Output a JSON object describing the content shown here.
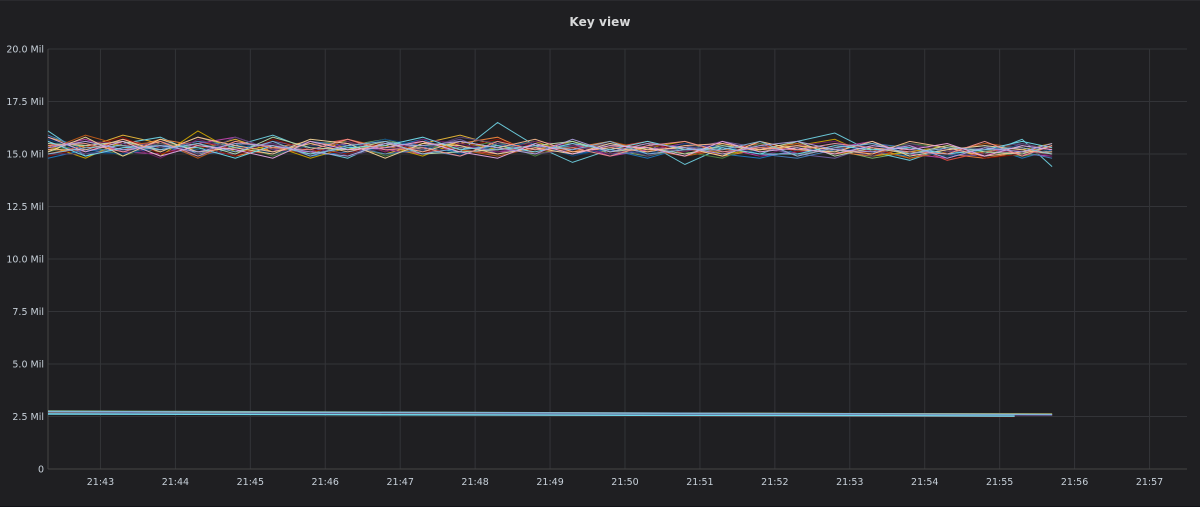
{
  "panel": {
    "title": "Key view"
  },
  "chart_data": {
    "type": "line",
    "title": "Key view",
    "xlabel": "",
    "ylabel": "",
    "x_ticks": [
      "21:43",
      "21:44",
      "21:45",
      "21:46",
      "21:47",
      "21:48",
      "21:49",
      "21:50",
      "21:51",
      "21:52",
      "21:53",
      "21:54",
      "21:55",
      "21:56",
      "21:57"
    ],
    "y_ticks": [
      "0",
      "2.5 Mil",
      "5.0 Mil",
      "7.5 Mil",
      "10.0 Mil",
      "12.5 Mil",
      "15.0 Mil",
      "17.5 Mil",
      "20.0 Mil"
    ],
    "y_tick_values": [
      0,
      2500000,
      5000000,
      7500000,
      10000000,
      12500000,
      15000000,
      17500000,
      20000000
    ],
    "xlim_minutes_after_21_42": [
      0.3,
      15.5
    ],
    "ylim": [
      0,
      20000000
    ],
    "grid": true,
    "legend": "none",
    "colors": [
      "#7eb26d",
      "#eab839",
      "#6ed0e0",
      "#ef843c",
      "#e24d42",
      "#1f78c1",
      "#ba43a9",
      "#705da0",
      "#508642",
      "#cca300",
      "#447ebc",
      "#c15c17",
      "#890f02",
      "#0a437c",
      "#6d1f62",
      "#584477",
      "#b7dbab",
      "#f4d598",
      "#70dbed",
      "#f9ba8f",
      "#f29191",
      "#82b5d8",
      "#e5a8e2",
      "#aea2e0"
    ],
    "high_band": {
      "series_count": 24,
      "times": [
        "21:42:18",
        "21:42:48",
        "21:43:18",
        "21:43:48",
        "21:44:18",
        "21:44:48",
        "21:45:18",
        "21:45:48",
        "21:46:18",
        "21:46:48",
        "21:47:18",
        "21:47:48",
        "21:48:18",
        "21:48:48",
        "21:49:18",
        "21:49:48",
        "21:50:18",
        "21:50:48",
        "21:51:18",
        "21:51:48",
        "21:52:18",
        "21:52:48",
        "21:53:18",
        "21:53:48",
        "21:54:18",
        "21:54:48",
        "21:55:18",
        "21:55:42"
      ],
      "series": [
        {
          "values": [
            15.2,
            15.6,
            15.4,
            15.1,
            15.8,
            15.3,
            15.5,
            15.0,
            15.4,
            15.7,
            15.2,
            15.6,
            15.3,
            15.1,
            15.4,
            15.2,
            14.9,
            15.3,
            15.1,
            15.4,
            15.0,
            15.2,
            14.8,
            15.1,
            14.9,
            15.2,
            15.0,
            15.3
          ]
        },
        {
          "values": [
            15.8,
            15.3,
            15.9,
            15.5,
            15.2,
            15.7,
            15.1,
            15.6,
            15.3,
            15.0,
            15.5,
            15.9,
            15.4,
            15.2,
            15.6,
            15.0,
            15.3,
            14.9,
            15.5,
            15.1,
            15.4,
            15.0,
            15.3,
            14.8,
            15.2,
            14.9,
            15.4,
            15.1
          ]
        },
        {
          "values": [
            16.1,
            14.9,
            15.5,
            15.8,
            15.0,
            15.4,
            15.9,
            15.2,
            14.8,
            15.6,
            15.3,
            15.1,
            16.5,
            15.4,
            14.6,
            15.2,
            15.5,
            14.5,
            15.3,
            15.0,
            15.6,
            16.0,
            15.1,
            14.7,
            15.3,
            15.0,
            15.7,
            14.4
          ]
        },
        {
          "values": [
            15.0,
            15.4,
            15.2,
            15.7,
            15.4,
            14.9,
            15.3,
            15.6,
            15.2,
            15.4,
            15.0,
            15.5,
            15.8,
            15.0,
            15.3,
            15.6,
            15.1,
            15.4,
            14.9,
            15.2,
            15.5,
            15.1,
            14.9,
            15.3,
            15.0,
            14.8,
            15.1,
            15.4
          ]
        },
        {
          "values": [
            15.5,
            15.1,
            15.7,
            15.3,
            15.6,
            15.2,
            15.0,
            15.4,
            15.7,
            15.1,
            15.6,
            15.2,
            15.0,
            15.5,
            15.1,
            15.3,
            15.6,
            15.0,
            15.2,
            15.5,
            14.9,
            15.3,
            15.0,
            15.4,
            14.7,
            15.1,
            15.3,
            15.0
          ]
        },
        {
          "values": [
            14.8,
            15.2,
            15.0,
            15.4,
            14.9,
            15.3,
            15.5,
            14.9,
            15.1,
            15.3,
            15.7,
            15.0,
            15.3,
            15.6,
            15.0,
            15.2,
            14.8,
            15.3,
            15.0,
            14.8,
            15.2,
            15.5,
            15.1,
            14.9,
            15.2,
            15.4,
            14.8,
            15.2
          ]
        },
        {
          "values": [
            15.3,
            15.7,
            15.1,
            15.0,
            15.5,
            15.8,
            15.2,
            15.1,
            15.5,
            15.2,
            15.0,
            15.4,
            15.1,
            15.3,
            15.5,
            14.9,
            15.2,
            15.5,
            15.3,
            14.9,
            15.1,
            15.3,
            15.6,
            15.0,
            14.8,
            15.3,
            15.0,
            14.9
          ]
        },
        {
          "values": [
            15.6,
            15.0,
            15.3,
            15.6,
            15.1,
            15.0,
            15.6,
            15.3,
            15.0,
            15.5,
            15.3,
            15.7,
            15.0,
            15.4,
            15.2,
            15.5,
            15.0,
            15.2,
            15.6,
            15.3,
            15.0,
            14.8,
            15.4,
            15.2,
            15.0,
            14.9,
            15.5,
            15.2
          ]
        },
        {
          "values": [
            15.1,
            15.5,
            14.9,
            15.5,
            15.3,
            15.5,
            14.9,
            15.5,
            15.6,
            14.9,
            15.4,
            15.3,
            15.6,
            14.9,
            15.6,
            15.1,
            15.4,
            15.1,
            14.8,
            15.5,
            15.3,
            15.0,
            15.2,
            15.5,
            15.3,
            15.1,
            14.9,
            15.1
          ]
        },
        {
          "values": [
            15.4,
            14.8,
            15.6,
            14.9,
            16.1,
            15.1,
            15.4,
            14.8,
            15.3,
            15.4,
            14.9,
            15.6,
            15.2,
            15.6,
            15.0,
            15.4,
            15.3,
            15.6,
            15.0,
            15.2,
            15.4,
            15.7,
            14.9,
            15.1,
            15.4,
            15.0,
            15.2,
            15.5
          ]
        },
        {
          "values": [
            15.9,
            15.2,
            15.2,
            15.2,
            15.6,
            15.4,
            15.1,
            15.6,
            15.4,
            15.0,
            15.2,
            14.9,
            15.5,
            15.2,
            15.4,
            15.0,
            15.1,
            15.3,
            15.4,
            15.0,
            14.8,
            15.2,
            15.5,
            15.3,
            15.0,
            15.3,
            15.1,
            14.8
          ]
        },
        {
          "values": [
            15.2,
            15.9,
            15.4,
            15.6,
            14.8,
            15.6,
            15.3,
            15.0,
            15.7,
            15.3,
            15.6,
            15.2,
            14.9,
            15.3,
            15.1,
            15.6,
            15.2,
            14.9,
            15.2,
            15.3,
            15.5,
            15.0,
            15.2,
            14.8,
            15.1,
            15.5,
            15.3,
            15.0
          ]
        },
        {
          "values": [
            14.9,
            15.3,
            15.8,
            15.0,
            15.4,
            14.9,
            15.7,
            15.2,
            15.0,
            15.6,
            15.1,
            15.3,
            15.7,
            15.1,
            15.3,
            15.2,
            15.5,
            15.2,
            15.0,
            15.6,
            15.1,
            15.4,
            15.0,
            15.2,
            15.5,
            14.8,
            15.0,
            15.3
          ]
        },
        {
          "values": [
            15.7,
            15.1,
            15.0,
            15.3,
            15.2,
            15.5,
            15.0,
            15.4,
            15.3,
            15.7,
            15.4,
            15.0,
            15.4,
            15.5,
            14.9,
            15.3,
            15.0,
            15.5,
            15.3,
            15.1,
            15.3,
            15.1,
            15.4,
            15.1,
            14.9,
            15.2,
            15.4,
            15.1
          ]
        },
        {
          "values": [
            15.3,
            15.6,
            15.5,
            14.8,
            15.7,
            15.2,
            15.5,
            14.9,
            15.6,
            15.1,
            15.7,
            15.5,
            15.1,
            15.6,
            15.4,
            15.0,
            15.4,
            15.1,
            15.6,
            14.9,
            15.4,
            15.6,
            15.1,
            15.4,
            15.2,
            15.0,
            15.2,
            14.9
          ]
        },
        {
          "values": [
            15.0,
            15.0,
            15.2,
            15.5,
            15.0,
            15.8,
            15.2,
            15.6,
            14.9,
            15.3,
            15.2,
            15.8,
            15.5,
            15.0,
            15.2,
            15.4,
            14.9,
            15.4,
            15.1,
            15.4,
            15.0,
            15.3,
            14.9,
            15.5,
            15.1,
            15.3,
            15.5,
            15.2
          ]
        },
        {
          "values": [
            15.5,
            15.4,
            15.6,
            15.2,
            15.5,
            15.0,
            15.8,
            15.3,
            15.2,
            15.6,
            15.0,
            15.1,
            15.2,
            15.4,
            15.6,
            15.1,
            15.3,
            15.0,
            15.4,
            15.2,
            15.6,
            14.9,
            15.3,
            15.0,
            15.4,
            15.1,
            15.0,
            15.4
          ]
        },
        {
          "values": [
            15.1,
            15.8,
            14.9,
            15.7,
            15.1,
            15.3,
            15.0,
            15.7,
            15.5,
            14.8,
            15.5,
            15.4,
            15.0,
            15.3,
            15.0,
            15.5,
            15.2,
            15.3,
            14.9,
            15.6,
            15.2,
            15.1,
            15.6,
            14.9,
            15.2,
            15.4,
            15.2,
            15.0
          ]
        },
        {
          "values": [
            15.6,
            14.9,
            15.3,
            15.4,
            15.3,
            14.8,
            15.4,
            15.0,
            15.3,
            15.4,
            15.8,
            15.2,
            15.4,
            15.1,
            15.5,
            15.2,
            15.6,
            15.2,
            15.3,
            15.0,
            15.0,
            15.4,
            15.2,
            15.3,
            15.0,
            15.2,
            15.6,
            15.3
          ]
        },
        {
          "values": [
            15.2,
            15.2,
            15.7,
            15.1,
            15.8,
            15.4,
            15.1,
            15.5,
            15.1,
            15.5,
            15.1,
            15.6,
            15.3,
            15.7,
            15.1,
            15.3,
            15.1,
            15.4,
            15.5,
            15.2,
            15.4,
            15.2,
            15.0,
            15.6,
            15.3,
            14.9,
            15.1,
            15.1
          ]
        },
        {
          "values": [
            15.4,
            15.5,
            15.1,
            15.6,
            14.9,
            15.6,
            15.3,
            15.2,
            15.7,
            15.2,
            15.3,
            14.9,
            15.6,
            15.2,
            15.3,
            14.9,
            15.4,
            15.6,
            15.1,
            15.3,
            15.2,
            15.5,
            15.3,
            15.1,
            15.0,
            15.6,
            14.9,
            15.4
          ]
        },
        {
          "values": [
            15.0,
            15.3,
            15.4,
            15.2,
            15.5,
            15.1,
            15.6,
            14.9,
            15.4,
            15.6,
            15.0,
            15.3,
            15.2,
            15.4,
            15.2,
            15.6,
            15.0,
            15.2,
            15.2,
            15.6,
            14.9,
            15.3,
            15.5,
            15.0,
            15.3,
            15.2,
            15.3,
            15.0
          ]
        },
        {
          "values": [
            15.8,
            15.1,
            15.6,
            14.9,
            15.4,
            15.2,
            14.8,
            15.6,
            15.2,
            15.3,
            15.6,
            15.1,
            14.8,
            15.5,
            15.0,
            15.4,
            15.3,
            14.9,
            15.6,
            15.1,
            15.3,
            15.0,
            15.4,
            15.2,
            15.5,
            14.9,
            15.4,
            15.2
          ]
        },
        {
          "values": [
            15.3,
            15.6,
            15.2,
            15.4,
            15.1,
            15.5,
            15.4,
            15.1,
            14.9,
            15.5,
            15.4,
            15.6,
            15.3,
            15.0,
            15.7,
            15.1,
            15.5,
            15.3,
            15.0,
            15.4,
            15.6,
            15.2,
            15.1,
            15.4,
            14.8,
            15.3,
            15.1,
            15.5
          ]
        }
      ]
    },
    "low_band": {
      "series_count": 8,
      "series": [
        {
          "start": 2.76,
          "end": 2.6,
          "end_time": "21:55:12"
        },
        {
          "start": 2.72,
          "end": 2.58,
          "end_time": "21:55:42"
        },
        {
          "start": 2.68,
          "end": 2.55,
          "end_time": "21:55:12"
        },
        {
          "start": 2.7,
          "end": 2.62,
          "end_time": "21:55:42"
        },
        {
          "start": 2.64,
          "end": 2.5,
          "end_time": "21:55:12"
        },
        {
          "start": 2.66,
          "end": 2.56,
          "end_time": "21:55:42"
        },
        {
          "start": 2.62,
          "end": 2.52,
          "end_time": "21:55:12"
        },
        {
          "start": 2.74,
          "end": 2.6,
          "end_time": "21:55:42"
        }
      ]
    }
  }
}
